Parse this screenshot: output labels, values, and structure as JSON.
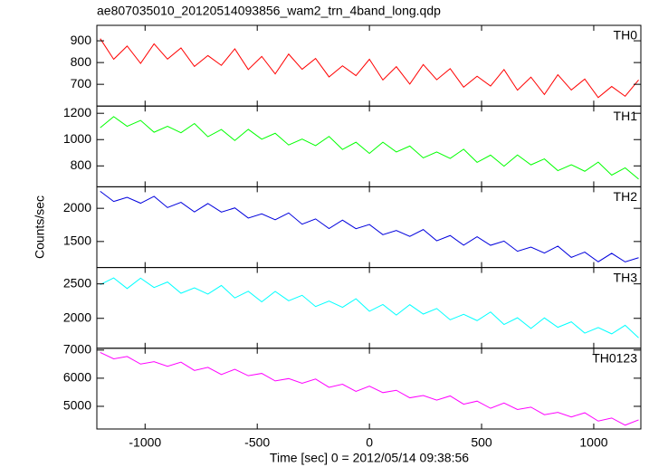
{
  "chart_data": {
    "type": "line",
    "title": "ae807035010_20120514093856_wam2_trn_4band_long.qdp",
    "xlabel": "Time [sec] 0 = 2012/05/14 09:38:56",
    "ylabel": "Counts/sec",
    "xlim": [
      -1215,
      1210
    ],
    "xticks": [
      -1000,
      -500,
      0,
      500,
      1000
    ],
    "x": [
      -1200,
      -1140,
      -1080,
      -1020,
      -960,
      -900,
      -840,
      -780,
      -720,
      -660,
      -600,
      -540,
      -480,
      -420,
      -360,
      -300,
      -240,
      -180,
      -120,
      -60,
      0,
      60,
      120,
      180,
      240,
      300,
      360,
      420,
      480,
      540,
      600,
      660,
      720,
      780,
      840,
      900,
      960,
      1020,
      1080,
      1140,
      1200
    ],
    "panels": [
      {
        "name": "TH0",
        "color": "#ff0000",
        "ylim": [
          600,
          971
        ],
        "yticks": [
          700,
          800,
          900
        ],
        "values": [
          910,
          815,
          876,
          796,
          886,
          816,
          867,
          782,
          832,
          787,
          863,
          768,
          828,
          748,
          839,
          769,
          819,
          734,
          785,
          740,
          815,
          720,
          781,
          701,
          791,
          721,
          772,
          687,
          737,
          692,
          768,
          673,
          733,
          653,
          744,
          674,
          724,
          639,
          690,
          645,
          720
        ]
      },
      {
        "name": "TH1",
        "color": "#00ff00",
        "ylim": [
          641,
          1255
        ],
        "yticks": [
          800,
          1000,
          1200
        ],
        "values": [
          1090,
          1175,
          1101,
          1146,
          1056,
          1101,
          1052,
          1122,
          1022,
          1077,
          993,
          1078,
          1003,
          1048,
          959,
          1004,
          954,
          1024,
          925,
          980,
          895,
          980,
          906,
          951,
          861,
          906,
          857,
          927,
          827,
          882,
          798,
          883,
          808,
          853,
          764,
          809,
          759,
          829,
          730,
          785,
          700
        ]
      },
      {
        "name": "TH2",
        "color": "#0000dd",
        "ylim": [
          1108,
          2324
        ],
        "yticks": [
          1500,
          2000
        ],
        "values": [
          2256,
          2103,
          2166,
          2077,
          2180,
          2011,
          2090,
          1945,
          2072,
          1943,
          2006,
          1853,
          1916,
          1827,
          1930,
          1761,
          1840,
          1695,
          1822,
          1693,
          1756,
          1603,
          1666,
          1577,
          1680,
          1511,
          1590,
          1445,
          1572,
          1443,
          1506,
          1353,
          1416,
          1327,
          1430,
          1261,
          1340,
          1195,
          1322,
          1193,
          1256
        ]
      },
      {
        "name": "TH3",
        "color": "#00ffff",
        "ylim": [
          1566,
          2737
        ],
        "yticks": [
          2000,
          2500
        ],
        "values": [
          2488,
          2586,
          2432,
          2583,
          2447,
          2527,
          2364,
          2443,
          2352,
          2477,
          2296,
          2393,
          2239,
          2391,
          2255,
          2334,
          2171,
          2251,
          2160,
          2284,
          2103,
          2201,
          2047,
          2198,
          2062,
          2142,
          1979,
          2058,
          1967,
          2092,
          1911,
          2008,
          1854,
          2006,
          1870,
          1949,
          1786,
          1866,
          1775,
          1899,
          1718
        ]
      },
      {
        "name": "TH0123",
        "color": "#ff00ff",
        "ylim": [
          4194,
          7065
        ],
        "yticks": [
          5000,
          6000,
          7000
        ],
        "values": [
          6917,
          6688,
          6771,
          6503,
          6586,
          6422,
          6570,
          6276,
          6385,
          6130,
          6317,
          6088,
          6171,
          5903,
          5986,
          5822,
          5970,
          5676,
          5785,
          5530,
          5717,
          5488,
          5571,
          5303,
          5386,
          5222,
          5370,
          5076,
          5185,
          4930,
          5117,
          4888,
          4971,
          4703,
          4786,
          4622,
          4770,
          4476,
          4585,
          4330,
          4517
        ]
      }
    ]
  }
}
